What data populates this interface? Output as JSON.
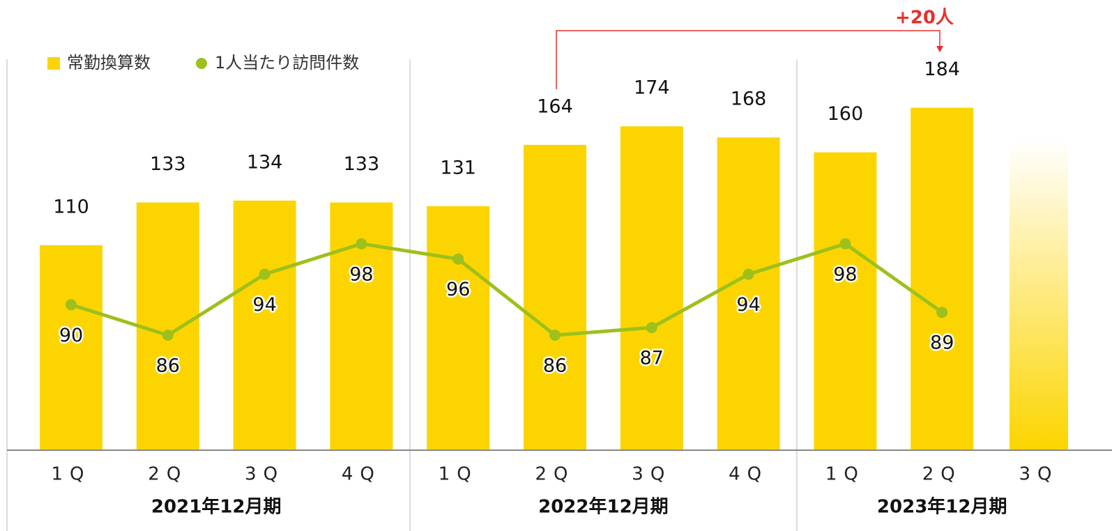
{
  "chart_data": {
    "type": "bar-line",
    "categories": [
      "1Q",
      "2Q",
      "3Q",
      "4Q",
      "1Q",
      "2Q",
      "3Q",
      "4Q",
      "1Q",
      "2Q",
      "3Q"
    ],
    "groups": [
      "2021年12月期",
      "2022年12月期",
      "2023年12月期"
    ],
    "series": [
      {
        "name": "常勤換算数",
        "color": "#fcd500",
        "type": "bar",
        "values": [
          110,
          133,
          134,
          133,
          131,
          164,
          174,
          168,
          160,
          184,
          null
        ]
      },
      {
        "name": "1人当たり訪問件数",
        "color": "#9dc01d",
        "type": "line",
        "axis": "y2",
        "values": [
          90,
          86,
          94,
          98,
          96,
          86,
          87,
          94,
          98,
          89,
          null
        ]
      }
    ],
    "ylim": [
      0,
      242
    ],
    "y2lim": [
      71,
      130
    ],
    "annotation": "+20人"
  }
}
